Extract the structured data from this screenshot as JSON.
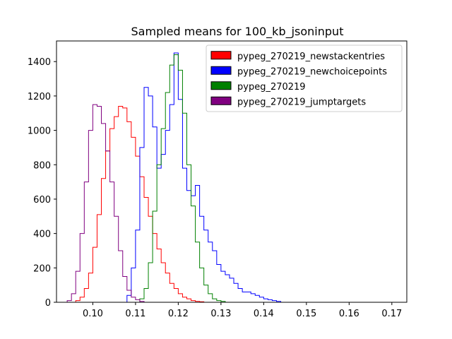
{
  "chart_data": {
    "type": "histogram",
    "title": "Sampled means for 100_kb_jsoninput",
    "xlabel": "",
    "ylabel": "",
    "xlim": [
      0.0915,
      0.1735
    ],
    "ylim": [
      0,
      1520
    ],
    "xticks": [
      "0.10",
      "0.11",
      "0.12",
      "0.13",
      "0.14",
      "0.15",
      "0.16",
      "0.17"
    ],
    "yticks": [
      "0",
      "200",
      "400",
      "600",
      "800",
      "1000",
      "1200",
      "1400"
    ],
    "legend_position": "top-right",
    "bin_width": 0.001,
    "series": [
      {
        "name": "pypeg_270219_newstackentries",
        "color": "#ff0000",
        "bin_start": 0.096,
        "counts": [
          10,
          30,
          80,
          170,
          320,
          510,
          720,
          880,
          1010,
          1080,
          1140,
          1130,
          1050,
          960,
          850,
          730,
          610,
          500,
          400,
          310,
          230,
          170,
          110,
          80,
          50,
          30,
          20,
          10,
          5,
          3
        ]
      },
      {
        "name": "pypeg_270219_newchoicepoints",
        "color": "#0000ff",
        "bin_start": 0.108,
        "counts": [
          40,
          200,
          420,
          900,
          1250,
          1200,
          1020,
          780,
          860,
          1000,
          1150,
          1450,
          1180,
          780,
          650,
          620,
          680,
          500,
          420,
          350,
          300,
          220,
          180,
          160,
          140,
          110,
          80,
          60,
          60,
          50,
          40,
          30,
          20,
          15,
          10,
          5
        ]
      },
      {
        "name": "pypeg_270219",
        "color": "#008000",
        "bin_start": 0.111,
        "counts": [
          20,
          80,
          230,
          530,
          800,
          1010,
          1220,
          1380,
          1440,
          1350,
          1100,
          800,
          560,
          350,
          200,
          100,
          50,
          20,
          10,
          5
        ]
      },
      {
        "name": "pypeg_270219_jumptargets",
        "color": "#800080",
        "bin_start": 0.094,
        "counts": [
          10,
          50,
          180,
          400,
          700,
          1000,
          1150,
          1140,
          1040,
          880,
          700,
          500,
          300,
          150,
          70,
          30,
          15,
          5
        ]
      }
    ]
  }
}
